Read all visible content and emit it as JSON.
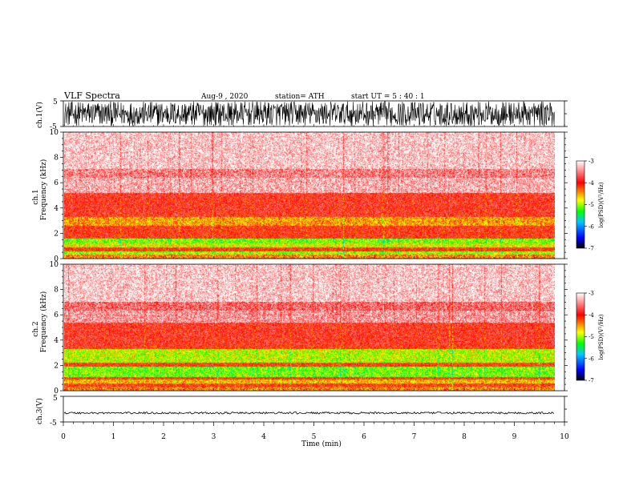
{
  "header": {
    "title": "VLF  Spectra",
    "date": "Aug-9   , 2020",
    "station": "station= ATH",
    "start_ut": "start  UT  =    5  : 40 : 1"
  },
  "chart_data": [
    {
      "type": "line",
      "name": "ch1-waveform",
      "ylabel": "ch.1(V)",
      "ylim": [
        -5,
        5
      ],
      "yticks": [
        "5",
        "-5"
      ],
      "xlim": [
        0,
        10
      ],
      "data_end_min": 9.8,
      "amplitude_envelope": [
        -4.8,
        4.8
      ]
    },
    {
      "type": "heatmap",
      "name": "ch1-spectrogram",
      "ylabel_channel": "ch.1",
      "ylabel": "Frequency  (kHz)",
      "ylim": [
        0,
        10
      ],
      "yticks": [
        "0",
        "2",
        "4",
        "6",
        "8",
        "10"
      ],
      "xlim": [
        0,
        10
      ],
      "data_end_min": 9.8,
      "band_profile": [
        {
          "f0": 0.0,
          "f1": 0.3,
          "level": -4.4
        },
        {
          "f0": 0.3,
          "f1": 0.6,
          "level": -5.0
        },
        {
          "f0": 0.6,
          "f1": 0.9,
          "level": -4.0
        },
        {
          "f0": 0.9,
          "f1": 1.2,
          "level": -4.8
        },
        {
          "f0": 1.2,
          "f1": 1.6,
          "level": -5.1
        },
        {
          "f0": 1.6,
          "f1": 1.9,
          "level": -4.0
        },
        {
          "f0": 1.9,
          "f1": 2.6,
          "level": -4.0
        },
        {
          "f0": 2.6,
          "f1": 3.3,
          "level": -4.5
        },
        {
          "f0": 3.3,
          "f1": 3.6,
          "level": -3.9
        },
        {
          "f0": 3.6,
          "f1": 5.2,
          "level": -3.9
        },
        {
          "f0": 5.2,
          "f1": 6.4,
          "level": -3.3
        },
        {
          "f0": 6.4,
          "f1": 7.1,
          "level": -3.5
        },
        {
          "f0": 7.1,
          "f1": 10.0,
          "level": -3.2
        }
      ],
      "colorbar": {
        "label": "log(PSD)(V²/Hz)",
        "range": [
          -7,
          -3
        ],
        "ticks": [
          "-3",
          "-4",
          "-5",
          "-6",
          "-7"
        ],
        "colors": [
          "#000000",
          "#0000ff",
          "#00c8ff",
          "#00ff00",
          "#ffff00",
          "#ff0000",
          "#ffffff"
        ]
      }
    },
    {
      "type": "heatmap",
      "name": "ch2-spectrogram",
      "ylabel_channel": "ch.2",
      "ylabel": "Frequency  (kHz)",
      "ylim": [
        0,
        10
      ],
      "yticks": [
        "0",
        "2",
        "4",
        "6",
        "8",
        "10"
      ],
      "xlim": [
        0,
        10
      ],
      "data_end_min": 9.8,
      "band_profile": [
        {
          "f0": 0.0,
          "f1": 0.3,
          "level": -4.4
        },
        {
          "f0": 0.3,
          "f1": 0.6,
          "level": -4.0
        },
        {
          "f0": 0.6,
          "f1": 0.9,
          "level": -4.6
        },
        {
          "f0": 0.9,
          "f1": 1.1,
          "level": -4.0
        },
        {
          "f0": 1.1,
          "f1": 1.9,
          "level": -5.1
        },
        {
          "f0": 1.9,
          "f1": 2.2,
          "level": -4.0
        },
        {
          "f0": 2.2,
          "f1": 3.3,
          "level": -4.9
        },
        {
          "f0": 3.3,
          "f1": 3.6,
          "level": -4.0
        },
        {
          "f0": 3.6,
          "f1": 5.4,
          "level": -3.9
        },
        {
          "f0": 5.4,
          "f1": 6.3,
          "level": -3.4
        },
        {
          "f0": 6.3,
          "f1": 7.0,
          "level": -3.6
        },
        {
          "f0": 7.0,
          "f1": 10.0,
          "level": -3.2
        }
      ],
      "colorbar": {
        "label": "log(PSD)(V²/Hz)",
        "range": [
          -7,
          -3
        ],
        "ticks": [
          "-3",
          "-4",
          "-5",
          "-6",
          "-7"
        ],
        "colors": [
          "#000000",
          "#0000ff",
          "#00c8ff",
          "#00ff00",
          "#ffff00",
          "#ff0000",
          "#ffffff"
        ]
      }
    },
    {
      "type": "line",
      "name": "ch3-waveform",
      "ylabel": "ch.3(V)",
      "ylim": [
        -5,
        5
      ],
      "yticks": [
        "5",
        "-5"
      ],
      "xlim": [
        0,
        10
      ],
      "data_end_min": 9.8,
      "amplitude_envelope": [
        -0.4,
        0.4
      ],
      "offset": -1.5
    }
  ],
  "xaxis": {
    "label": "Time  (min)",
    "ticks": [
      "0",
      "1",
      "2",
      "3",
      "4",
      "5",
      "6",
      "7",
      "8",
      "9",
      "10"
    ]
  }
}
